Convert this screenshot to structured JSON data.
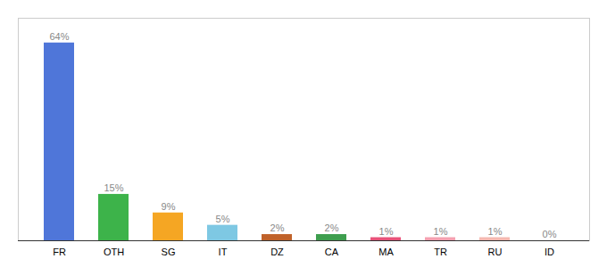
{
  "chart_data": {
    "type": "bar",
    "categories": [
      "FR",
      "OTH",
      "SG",
      "IT",
      "DZ",
      "CA",
      "MA",
      "TR",
      "RU",
      "ID"
    ],
    "values": [
      64,
      15,
      9,
      5,
      2,
      2,
      1,
      1,
      1,
      0
    ],
    "value_labels": [
      "64%",
      "15%",
      "9%",
      "5%",
      "2%",
      "2%",
      "1%",
      "1%",
      "1%",
      "0%"
    ],
    "colors": [
      "#4F76D9",
      "#3DB34A",
      "#F5A623",
      "#7EC8E3",
      "#C0622A",
      "#3E9E4E",
      "#E8527A",
      "#F4A0B0",
      "#F4B8B0",
      "#E8E8E8"
    ],
    "ylim": [
      0,
      72
    ],
    "data_labels": true,
    "tick_labels": "x",
    "grid": false
  }
}
